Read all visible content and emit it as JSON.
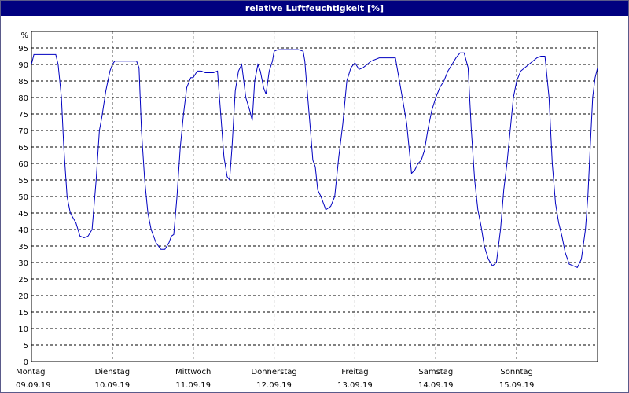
{
  "chart_data": {
    "type": "line",
    "title": "relative Luftfeuchtigkeit [%]",
    "y_unit_label": "%",
    "ylim": [
      0,
      100
    ],
    "y_ticks": [
      0,
      5,
      10,
      15,
      20,
      25,
      30,
      35,
      40,
      45,
      50,
      55,
      60,
      65,
      70,
      75,
      80,
      85,
      90,
      95
    ],
    "grid": true,
    "x_days": [
      {
        "weekday": "Montag",
        "date": "09.09.19"
      },
      {
        "weekday": "Dienstag",
        "date": "10.09.19"
      },
      {
        "weekday": "Mittwoch",
        "date": "11.09.19"
      },
      {
        "weekday": "Donnerstag",
        "date": "12.09.19"
      },
      {
        "weekday": "Freitag",
        "date": "13.09.19"
      },
      {
        "weekday": "Samstag",
        "date": "14.09.19"
      },
      {
        "weekday": "Sonntag",
        "date": "15.09.19"
      }
    ],
    "line_color": "#0000c0",
    "series": [
      {
        "points": [
          [
            0.0,
            90
          ],
          [
            0.03,
            93
          ],
          [
            0.1,
            93
          ],
          [
            0.3,
            93
          ],
          [
            0.33,
            90
          ],
          [
            0.37,
            80
          ],
          [
            0.4,
            65
          ],
          [
            0.44,
            50
          ],
          [
            0.48,
            45
          ],
          [
            0.55,
            42
          ],
          [
            0.6,
            38
          ],
          [
            0.65,
            37.5
          ],
          [
            0.7,
            38
          ],
          [
            0.75,
            40
          ],
          [
            0.8,
            55
          ],
          [
            0.84,
            70
          ],
          [
            0.87,
            74
          ],
          [
            0.92,
            82
          ],
          [
            0.97,
            88
          ],
          [
            1.0,
            90
          ],
          [
            1.03,
            91
          ],
          [
            1.1,
            91
          ],
          [
            1.3,
            91
          ],
          [
            1.33,
            89
          ],
          [
            1.36,
            70
          ],
          [
            1.4,
            55
          ],
          [
            1.44,
            45
          ],
          [
            1.48,
            40
          ],
          [
            1.54,
            36
          ],
          [
            1.6,
            34
          ],
          [
            1.65,
            34
          ],
          [
            1.7,
            36
          ],
          [
            1.73,
            38
          ],
          [
            1.76,
            38.5
          ],
          [
            1.8,
            50
          ],
          [
            1.84,
            65
          ],
          [
            1.88,
            75
          ],
          [
            1.92,
            83
          ],
          [
            1.97,
            86
          ],
          [
            2.0,
            86
          ],
          [
            2.05,
            88
          ],
          [
            2.1,
            88
          ],
          [
            2.15,
            87.5
          ],
          [
            2.2,
            87.5
          ],
          [
            2.25,
            87.5
          ],
          [
            2.3,
            88
          ],
          [
            2.34,
            75
          ],
          [
            2.38,
            62
          ],
          [
            2.42,
            56
          ],
          [
            2.45,
            55
          ],
          [
            2.48,
            65
          ],
          [
            2.52,
            82
          ],
          [
            2.56,
            88
          ],
          [
            2.6,
            90
          ],
          [
            2.62,
            86
          ],
          [
            2.65,
            80
          ],
          [
            2.7,
            76
          ],
          [
            2.73,
            73
          ],
          [
            2.76,
            85
          ],
          [
            2.8,
            90
          ],
          [
            2.83,
            88
          ],
          [
            2.87,
            83
          ],
          [
            2.9,
            81
          ],
          [
            2.94,
            88
          ],
          [
            2.98,
            91
          ],
          [
            3.0,
            94
          ],
          [
            3.05,
            94.5
          ],
          [
            3.2,
            94.5
          ],
          [
            3.3,
            94.5
          ],
          [
            3.36,
            94
          ],
          [
            3.38,
            91
          ],
          [
            3.4,
            85
          ],
          [
            3.45,
            70
          ],
          [
            3.48,
            61
          ],
          [
            3.51,
            59
          ],
          [
            3.54,
            52
          ],
          [
            3.58,
            50
          ],
          [
            3.64,
            46
          ],
          [
            3.7,
            47
          ],
          [
            3.75,
            50
          ],
          [
            3.8,
            62
          ],
          [
            3.85,
            72
          ],
          [
            3.9,
            85
          ],
          [
            3.95,
            89
          ],
          [
            4.0,
            90.5
          ],
          [
            4.05,
            88.5
          ],
          [
            4.1,
            89
          ],
          [
            4.15,
            90
          ],
          [
            4.2,
            91
          ],
          [
            4.3,
            92
          ],
          [
            4.4,
            92
          ],
          [
            4.5,
            92
          ],
          [
            4.55,
            85
          ],
          [
            4.6,
            78
          ],
          [
            4.64,
            72
          ],
          [
            4.68,
            62
          ],
          [
            4.7,
            57
          ],
          [
            4.74,
            58
          ],
          [
            4.78,
            60
          ],
          [
            4.82,
            61
          ],
          [
            4.86,
            64
          ],
          [
            4.9,
            70
          ],
          [
            4.95,
            76
          ],
          [
            5.0,
            80
          ],
          [
            5.05,
            83
          ],
          [
            5.1,
            85
          ],
          [
            5.15,
            88
          ],
          [
            5.2,
            90
          ],
          [
            5.25,
            92
          ],
          [
            5.3,
            93.5
          ],
          [
            5.35,
            93.5
          ],
          [
            5.4,
            89
          ],
          [
            5.44,
            70
          ],
          [
            5.48,
            55
          ],
          [
            5.52,
            46
          ],
          [
            5.56,
            41
          ],
          [
            5.6,
            35
          ],
          [
            5.65,
            31
          ],
          [
            5.7,
            29
          ],
          [
            5.75,
            30
          ],
          [
            5.8,
            40
          ],
          [
            5.84,
            52
          ],
          [
            5.88,
            60
          ],
          [
            5.92,
            70
          ],
          [
            5.96,
            80
          ],
          [
            6.0,
            85
          ],
          [
            6.05,
            88
          ],
          [
            6.1,
            89
          ],
          [
            6.15,
            90
          ],
          [
            6.2,
            91
          ],
          [
            6.25,
            92
          ],
          [
            6.3,
            92.5
          ],
          [
            6.35,
            92.5
          ],
          [
            6.4,
            80
          ],
          [
            6.44,
            60
          ],
          [
            6.48,
            48
          ],
          [
            6.52,
            42
          ],
          [
            6.56,
            38
          ],
          [
            6.6,
            33
          ],
          [
            6.65,
            29.5
          ],
          [
            6.7,
            29
          ],
          [
            6.75,
            28.5
          ],
          [
            6.8,
            31
          ],
          [
            6.85,
            40
          ],
          [
            6.88,
            50
          ],
          [
            6.91,
            65
          ],
          [
            6.94,
            80
          ],
          [
            6.97,
            86
          ],
          [
            7.0,
            89
          ]
        ]
      }
    ]
  }
}
